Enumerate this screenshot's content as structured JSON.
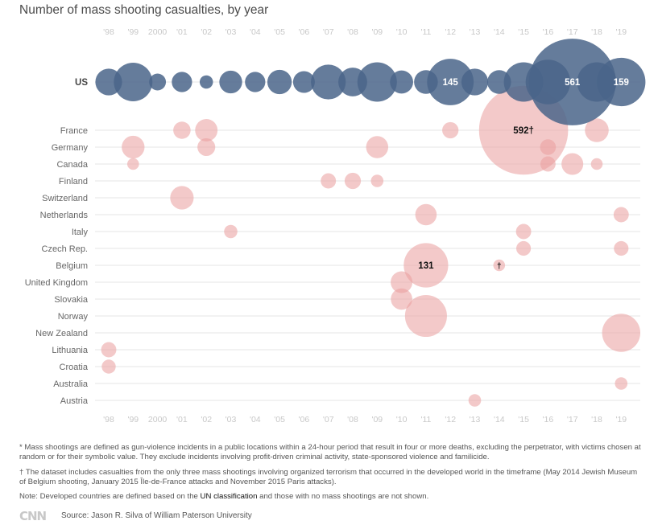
{
  "title": "Number of mass shooting casualties, by year",
  "chart_data": {
    "type": "bubble",
    "title": "Number of mass shooting casualties, by year",
    "years": [
      1998,
      1999,
      2000,
      2001,
      2002,
      2003,
      2004,
      2005,
      2006,
      2007,
      2008,
      2009,
      2010,
      2011,
      2012,
      2013,
      2014,
      2015,
      2016,
      2017,
      2018,
      2019
    ],
    "year_labels": [
      "'98",
      "'99",
      "2000",
      "'01",
      "'02",
      "'03",
      "'04",
      "'05",
      "'06",
      "'07",
      "'08",
      "'09",
      "'10",
      "'11",
      "'12",
      "'13",
      "'14",
      "'15",
      "'16",
      "'17",
      "'18",
      "'19"
    ],
    "countries": [
      "US",
      "France",
      "Germany",
      "Canada",
      "Finland",
      "Switzerland",
      "Netherlands",
      "Italy",
      "Czech Rep.",
      "Belgium",
      "United Kingdom",
      "Slovakia",
      "Norway",
      "New Zealand",
      "Lithuania",
      "Croatia",
      "Australia",
      "Austria"
    ],
    "colors": {
      "us": "#4a6589",
      "other": "#ea9c9c",
      "grid": "#e6e6e6",
      "tick": "#c8c8c8"
    },
    "series": [
      {
        "name": "US",
        "points": [
          [
            1998,
            40
          ],
          [
            1999,
            95
          ],
          [
            2000,
            12
          ],
          [
            2001,
            20
          ],
          [
            2002,
            6
          ],
          [
            2003,
            27
          ],
          [
            2004,
            20
          ],
          [
            2005,
            32
          ],
          [
            2006,
            24
          ],
          [
            2007,
            75
          ],
          [
            2008,
            48
          ],
          [
            2009,
            100
          ],
          [
            2010,
            28
          ],
          [
            2011,
            30
          ],
          [
            2012,
            145
          ],
          [
            2013,
            40
          ],
          [
            2014,
            30
          ],
          [
            2015,
            100
          ],
          [
            2016,
            132
          ],
          [
            2017,
            561
          ],
          [
            2018,
            100
          ],
          [
            2019,
            159
          ]
        ]
      },
      {
        "name": "France",
        "points": [
          [
            2001,
            13
          ],
          [
            2002,
            26
          ],
          [
            2012,
            11
          ],
          [
            2015,
            592
          ],
          [
            2018,
            30
          ]
        ]
      },
      {
        "name": "Germany",
        "points": [
          [
            1999,
            27
          ],
          [
            2002,
            14
          ],
          [
            2009,
            25
          ],
          [
            2016,
            10
          ]
        ]
      },
      {
        "name": "Canada",
        "points": [
          [
            1999,
            4
          ],
          [
            2016,
            9
          ],
          [
            2017,
            24
          ],
          [
            2018,
            4
          ]
        ]
      },
      {
        "name": "Finland",
        "points": [
          [
            2007,
            9
          ],
          [
            2008,
            11
          ],
          [
            2009,
            5
          ]
        ]
      },
      {
        "name": "Switzerland",
        "points": [
          [
            2001,
            29
          ]
        ]
      },
      {
        "name": "Netherlands",
        "points": [
          [
            2011,
            23
          ],
          [
            2019,
            9
          ]
        ]
      },
      {
        "name": "Italy",
        "points": [
          [
            2003,
            6
          ],
          [
            2015,
            9
          ]
        ]
      },
      {
        "name": "Czech Rep.",
        "points": [
          [
            2015,
            8
          ],
          [
            2019,
            8
          ]
        ]
      },
      {
        "name": "Belgium",
        "points": [
          [
            2011,
            131
          ],
          [
            2014,
            4
          ]
        ]
      },
      {
        "name": "United Kingdom",
        "points": [
          [
            2010,
            24
          ]
        ]
      },
      {
        "name": "Slovakia",
        "points": [
          [
            2010,
            23
          ]
        ]
      },
      {
        "name": "Norway",
        "points": [
          [
            2011,
            115
          ]
        ]
      },
      {
        "name": "New Zealand",
        "points": [
          [
            2019,
            93
          ]
        ]
      },
      {
        "name": "Lithuania",
        "points": [
          [
            1998,
            9
          ]
        ]
      },
      {
        "name": "Croatia",
        "points": [
          [
            1998,
            7
          ]
        ]
      },
      {
        "name": "Australia",
        "points": [
          [
            2019,
            5
          ]
        ]
      },
      {
        "name": "Austria",
        "points": [
          [
            2013,
            5
          ]
        ]
      }
    ],
    "data_labels": [
      {
        "country": "US",
        "year": 2012,
        "text": "145"
      },
      {
        "country": "US",
        "year": 2017,
        "text": "561"
      },
      {
        "country": "US",
        "year": 2019,
        "text": "159"
      },
      {
        "country": "France",
        "year": 2015,
        "text": "592†"
      },
      {
        "country": "Belgium",
        "year": 2011,
        "text": "131"
      },
      {
        "country": "Belgium",
        "year": 2014,
        "text": "†"
      }
    ],
    "grid": true,
    "legend": "none"
  },
  "notes": {
    "note1": "* Mass shootings are defined as gun-violence incidents in a public locations within a 24-hour period that result in four or more deaths, excluding the perpetrator, with victims chosen at random or for their symbolic value. They exclude incidents involving profit-driven criminal activity, state-sponsored violence and familicide.",
    "note2": "† The dataset includes casualties from the only three mass shootings involving organized terrorism that occurred in the developed world in the timeframe (May 2014 Jewish Museum of Belgium shooting, January 2015 Île-de-France attacks and November 2015 Paris attacks).",
    "note3_before": "Note: Developed countries are defined based on the ",
    "note3_link": "UN classification",
    "note3_after": " and those with no mass shootings are not shown."
  },
  "logo": "CNN",
  "source": "Source: Jason R. Silva of William Paterson University"
}
